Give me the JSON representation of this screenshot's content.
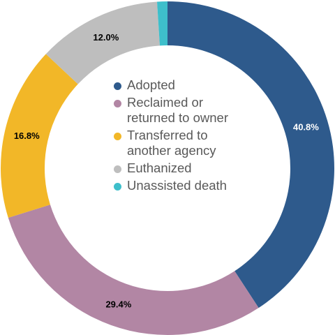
{
  "chart_data": {
    "type": "donut",
    "title": "",
    "slices": [
      {
        "name": "Adopted",
        "value": 40.8,
        "label": "40.8%",
        "color": "#2E5A8C",
        "label_color": "#ffffff"
      },
      {
        "name": "Reclaimed or returned to owner",
        "value": 29.4,
        "label": "29.4%",
        "color": "#B286A4",
        "label_color": "#000000"
      },
      {
        "name": "Transferred to another agency",
        "value": 16.8,
        "label": "16.8%",
        "color": "#F2B728",
        "label_color": "#000000"
      },
      {
        "name": "Euthanized",
        "value": 12.0,
        "label": "12.0%",
        "color": "#BEBEBE",
        "label_color": "#000000"
      },
      {
        "name": "Unassisted death",
        "value": 1.0,
        "label": "",
        "color": "#3EBFCB",
        "label_color": "#000000"
      }
    ],
    "legend_position": "center"
  },
  "legend": [
    {
      "label": "Adopted",
      "color": "#2E5A8C"
    },
    {
      "label": "Reclaimed or returned to owner",
      "color": "#B286A4"
    },
    {
      "label": "Transferred to another agency",
      "color": "#F2B728"
    },
    {
      "label": "Euthanized",
      "color": "#BEBEBE"
    },
    {
      "label": "Unassisted death",
      "color": "#3EBFCB"
    }
  ]
}
